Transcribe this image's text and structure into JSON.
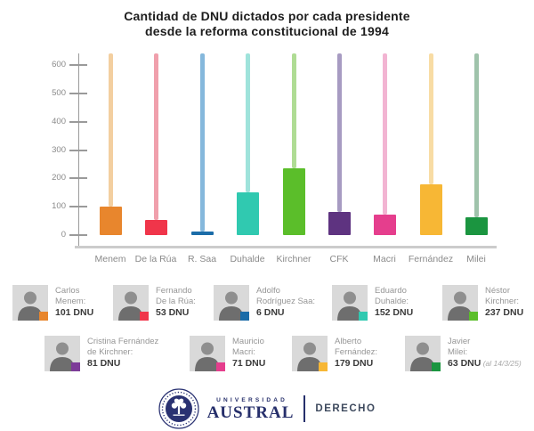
{
  "title": {
    "line1": "Cantidad de DNU dictados por cada presidente",
    "line2": "desde la reforma constitucional de 1994"
  },
  "chart_data": {
    "type": "bar",
    "title": "Cantidad de DNU dictados por cada presidente desde la reforma constitucional de 1994",
    "categories": [
      "Menem",
      "De la Rúa",
      "R. Saa",
      "Duhalde",
      "Kirchner",
      "CFK",
      "Macri",
      "Fernández",
      "Milei"
    ],
    "values": [
      101,
      53,
      6,
      152,
      237,
      81,
      71,
      179,
      63
    ],
    "bar_colors": [
      "#E8862D",
      "#F0354A",
      "#1B6CA8",
      "#30C9B0",
      "#5BBE2A",
      "#5E3380",
      "#E53E8D",
      "#F7B735",
      "#1B9540"
    ],
    "stem_colors": [
      "#F3CFA0",
      "#F0A0AC",
      "#85B8DC",
      "#9FE3DB",
      "#AFDC94",
      "#A79BC2",
      "#F2B4D2",
      "#F8DCA4",
      "#9FC3AB"
    ],
    "xlabel": "",
    "ylabel": "",
    "ylim": [
      0,
      600
    ],
    "yticks": [
      0,
      100,
      200,
      300,
      400,
      500,
      600
    ],
    "grid": false,
    "legend_position": "below",
    "style": "bars with thin pale stems extending to plot top"
  },
  "legend": {
    "row1": [
      {
        "name_lines": [
          "Carlos",
          "Menem:"
        ],
        "value": "101 DNU",
        "note": "",
        "color": "#E8862D"
      },
      {
        "name_lines": [
          "Fernando",
          "De la Rúa:"
        ],
        "value": "53 DNU",
        "note": "",
        "color": "#F0354A"
      },
      {
        "name_lines": [
          "Adolfo",
          "Rodríguez Saa:"
        ],
        "value": "6 DNU",
        "note": "",
        "color": "#1B6CA8"
      },
      {
        "name_lines": [
          "Eduardo",
          "Duhalde:"
        ],
        "value": "152 DNU",
        "note": "",
        "color": "#30C9B0"
      },
      {
        "name_lines": [
          "Néstor",
          "Kirchner:"
        ],
        "value": "237 DNU",
        "note": "",
        "color": "#5BBE2A"
      }
    ],
    "row2": [
      {
        "name_lines": [
          "Cristina Fernández",
          "de Kirchner:"
        ],
        "value": "81 DNU",
        "note": "",
        "color": "#7D3C98"
      },
      {
        "name_lines": [
          "Mauricio",
          "Macri:"
        ],
        "value": "71 DNU",
        "note": "",
        "color": "#E53E8D"
      },
      {
        "name_lines": [
          "Alberto",
          "Fernández:"
        ],
        "value": "179 DNU",
        "note": "",
        "color": "#F7B735"
      },
      {
        "name_lines": [
          "Javier",
          "Milei:"
        ],
        "value": "63 DNU",
        "note": "(al 14/3/25)",
        "color": "#1B9540"
      }
    ]
  },
  "footer": {
    "university_small": "UNIVERSIDAD",
    "university": "AUSTRAL",
    "department": "DERECHO"
  }
}
